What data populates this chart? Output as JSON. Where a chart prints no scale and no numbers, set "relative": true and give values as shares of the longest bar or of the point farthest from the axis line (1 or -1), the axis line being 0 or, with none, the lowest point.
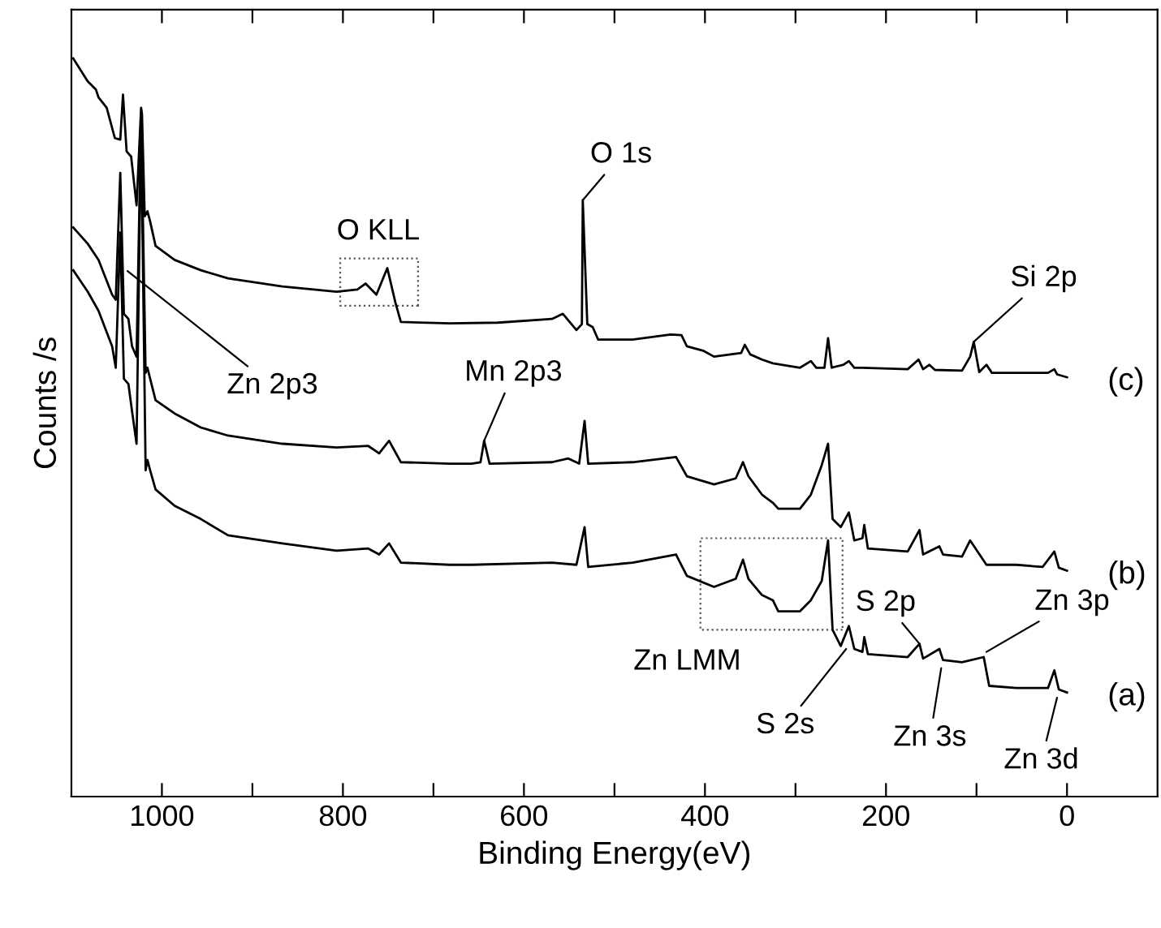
{
  "chart_data": {
    "type": "line",
    "xlabel": "Binding Energy(eV)",
    "ylabel": "Counts /s",
    "relative": true,
    "xlim": [
      1100,
      -100
    ],
    "xticks": [
      1000,
      {
        "value": 900,
        "label": null
      },
      800,
      {
        "value": 700,
        "label": null
      },
      600,
      {
        "value": 500,
        "label": null
      },
      400,
      {
        "value": 300,
        "label": null
      },
      200,
      {
        "value": 100,
        "label": null
      },
      0
    ],
    "legend": false,
    "grid": false,
    "marker": "none",
    "line_style": "solid",
    "series": [
      {
        "name": "(a)",
        "color": "#000000",
        "x": [
          1098,
          1082,
          1070,
          1055,
          1051,
          1046,
          1042,
          1037,
          1033,
          1028,
          1023,
          1018,
          1016,
          1013,
          1007,
          986,
          957,
          927,
          867,
          807,
          772,
          760,
          749,
          736,
          682,
          658,
          569,
          542,
          533,
          529,
          480,
          432,
          420,
          390,
          366,
          358,
          352,
          337,
          325,
          319,
          295,
          283,
          271,
          264,
          259,
          250,
          241,
          235,
          226,
          224,
          220,
          176,
          163,
          159,
          141,
          137,
          116,
          92,
          86,
          56,
          21,
          14,
          9,
          0
        ],
        "values": [
          0.713,
          0.684,
          0.658,
          0.61,
          0.581,
          0.764,
          0.566,
          0.559,
          0.522,
          0.478,
          0.911,
          0.442,
          0.456,
          0.442,
          0.416,
          0.394,
          0.376,
          0.354,
          0.343,
          0.333,
          0.336,
          0.328,
          0.343,
          0.317,
          0.314,
          0.314,
          0.317,
          0.314,
          0.365,
          0.311,
          0.317,
          0.328,
          0.299,
          0.284,
          0.295,
          0.321,
          0.295,
          0.273,
          0.266,
          0.251,
          0.251,
          0.266,
          0.292,
          0.347,
          0.226,
          0.204,
          0.231,
          0.2,
          0.196,
          0.216,
          0.193,
          0.189,
          0.207,
          0.187,
          0.2,
          0.185,
          0.182,
          0.189,
          0.15,
          0.147,
          0.147,
          0.171,
          0.145,
          0.141
        ]
      },
      {
        "name": "(b)",
        "color": "#000000",
        "x": [
          1098,
          1082,
          1070,
          1055,
          1051,
          1046,
          1042,
          1037,
          1033,
          1028,
          1023,
          1018,
          1016,
          1013,
          1007,
          986,
          957,
          927,
          867,
          807,
          772,
          760,
          749,
          736,
          682,
          658,
          648,
          644,
          638,
          569,
          551,
          539,
          533,
          529,
          480,
          432,
          420,
          390,
          366,
          358,
          352,
          337,
          325,
          319,
          295,
          283,
          271,
          264,
          259,
          250,
          241,
          235,
          226,
          224,
          220,
          176,
          163,
          159,
          141,
          137,
          116,
          107,
          89,
          56,
          27,
          14,
          9,
          0
        ],
        "values": [
          0.771,
          0.749,
          0.727,
          0.68,
          0.673,
          0.845,
          0.654,
          0.647,
          0.61,
          0.596,
          0.925,
          0.574,
          0.581,
          0.566,
          0.537,
          0.519,
          0.5,
          0.489,
          0.478,
          0.473,
          0.475,
          0.465,
          0.482,
          0.453,
          0.451,
          0.451,
          0.453,
          0.482,
          0.451,
          0.453,
          0.458,
          0.451,
          0.509,
          0.451,
          0.453,
          0.46,
          0.434,
          0.423,
          0.431,
          0.453,
          0.434,
          0.409,
          0.398,
          0.39,
          0.39,
          0.409,
          0.449,
          0.478,
          0.376,
          0.365,
          0.385,
          0.347,
          0.35,
          0.368,
          0.336,
          0.332,
          0.361,
          0.328,
          0.339,
          0.328,
          0.325,
          0.347,
          0.314,
          0.314,
          0.311,
          0.332,
          0.31,
          0.306
        ]
      },
      {
        "name": "(c)",
        "color": "#000000",
        "x": [
          1098,
          1082,
          1073,
          1070,
          1061,
          1052,
          1046,
          1043,
          1039,
          1034,
          1028,
          1023,
          1022,
          1019,
          1016,
          1013,
          1007,
          986,
          957,
          927,
          867,
          807,
          784,
          775,
          763,
          751,
          742,
          736,
          682,
          629,
          569,
          557,
          542,
          536,
          535,
          530,
          524,
          518,
          480,
          438,
          426,
          420,
          402,
          390,
          360,
          356,
          350,
          337,
          325,
          295,
          283,
          277,
          268,
          264,
          260,
          247,
          241,
          235,
          226,
          176,
          164,
          159,
          152,
          146,
          116,
          107,
          103,
          97,
          89,
          83,
          21,
          14,
          11,
          0
        ],
        "values": [
          1.0,
          0.969,
          0.958,
          0.947,
          0.933,
          0.892,
          0.89,
          0.951,
          0.874,
          0.867,
          0.801,
          0.933,
          0.925,
          0.786,
          0.793,
          0.779,
          0.746,
          0.727,
          0.713,
          0.702,
          0.691,
          0.684,
          0.687,
          0.695,
          0.68,
          0.716,
          0.669,
          0.643,
          0.641,
          0.642,
          0.647,
          0.654,
          0.632,
          0.64,
          0.808,
          0.64,
          0.636,
          0.619,
          0.619,
          0.626,
          0.625,
          0.61,
          0.604,
          0.596,
          0.601,
          0.612,
          0.599,
          0.592,
          0.587,
          0.581,
          0.59,
          0.581,
          0.581,
          0.621,
          0.581,
          0.585,
          0.59,
          0.581,
          0.581,
          0.579,
          0.592,
          0.579,
          0.585,
          0.578,
          0.577,
          0.596,
          0.616,
          0.575,
          0.585,
          0.574,
          0.574,
          0.579,
          0.572,
          0.568
        ]
      }
    ],
    "annotations": [
      {
        "text": "O KLL",
        "x": 751,
        "y": 0.716
      },
      {
        "text": "Zn 2p3",
        "x": 1038,
        "y": 0.712
      },
      {
        "text": "O 1s",
        "x": 535,
        "y": 0.808
      },
      {
        "text": "Mn 2p3",
        "x": 644,
        "y": 0.482
      },
      {
        "text": "Si 2p",
        "x": 103,
        "y": 0.616
      },
      "Zn LMM",
      {
        "text": "S 2s",
        "x": 244,
        "y": 0.2
      },
      {
        "text": "S 2p",
        "x": 163,
        "y": 0.207
      },
      {
        "text": "Zn 3p",
        "x": 89,
        "y": 0.196
      },
      {
        "text": "Zn 3s",
        "x": 139,
        "y": 0.174
      },
      {
        "text": "Zn 3d",
        "x": 11,
        "y": 0.134
      }
    ]
  }
}
